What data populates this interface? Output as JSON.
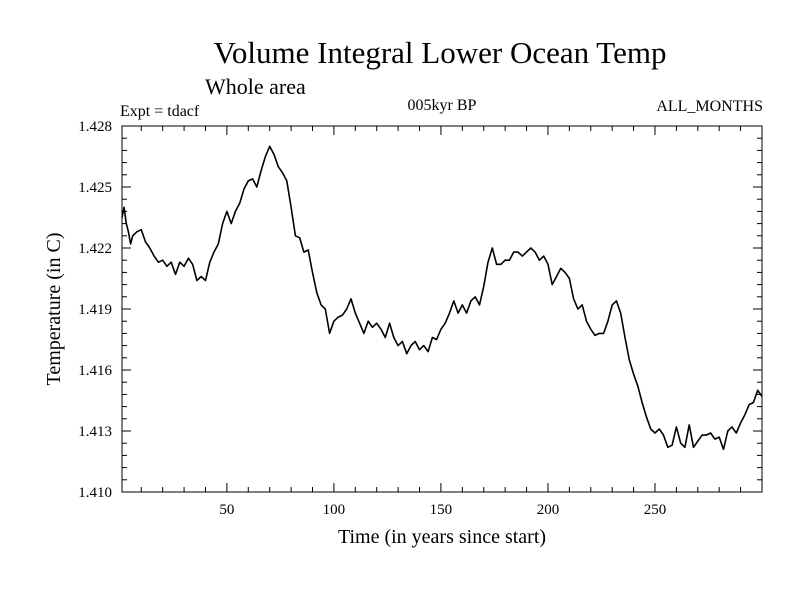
{
  "chart_data": {
    "type": "line",
    "title": "Volume Integral Lower Ocean Temp",
    "subtitle": "Whole area",
    "annotations": {
      "left": "Expt = tdacf",
      "center": "005kyr BP",
      "right": "ALL_MONTHS"
    },
    "xlabel": "Time (in years since start)",
    "ylabel": "Temperature (in C)",
    "xlim": [
      1,
      300
    ],
    "ylim": [
      1.41,
      1.428
    ],
    "x_major_ticks": [
      50,
      100,
      150,
      200,
      250
    ],
    "x_tick_labels": [
      "50",
      "100",
      "150",
      "200",
      "250"
    ],
    "x_minor_step": 10,
    "y_major_ticks": [
      1.41,
      1.413,
      1.416,
      1.419,
      1.422,
      1.425,
      1.428
    ],
    "y_tick_labels": [
      "1.410",
      "1.413",
      "1.416",
      "1.419",
      "1.422",
      "1.425",
      "1.428"
    ],
    "y_minor_step": 0.0006,
    "grid": false,
    "series": [
      {
        "name": "Volume Integral Lower Ocean Temp",
        "color": "#000000",
        "x": [
          1,
          2,
          3,
          4,
          5,
          6,
          8,
          10,
          12,
          14,
          16,
          18,
          20,
          22,
          24,
          26,
          28,
          30,
          32,
          34,
          36,
          38,
          40,
          42,
          44,
          46,
          48,
          50,
          52,
          54,
          56,
          58,
          60,
          62,
          64,
          66,
          68,
          70,
          72,
          74,
          76,
          78,
          80,
          82,
          84,
          86,
          88,
          90,
          92,
          94,
          96,
          98,
          100,
          102,
          104,
          106,
          108,
          110,
          112,
          114,
          116,
          118,
          120,
          122,
          124,
          126,
          128,
          130,
          132,
          134,
          136,
          138,
          140,
          142,
          144,
          146,
          148,
          150,
          152,
          154,
          156,
          158,
          160,
          162,
          164,
          166,
          168,
          170,
          172,
          174,
          176,
          178,
          180,
          182,
          184,
          186,
          188,
          190,
          192,
          194,
          196,
          198,
          200,
          202,
          204,
          206,
          208,
          210,
          212,
          214,
          216,
          218,
          220,
          222,
          224,
          226,
          228,
          230,
          232,
          234,
          236,
          238,
          240,
          242,
          244,
          246,
          248,
          250,
          252,
          254,
          256,
          258,
          260,
          262,
          264,
          266,
          268,
          270,
          272,
          274,
          276,
          278,
          280,
          282,
          284,
          286,
          288,
          290,
          292,
          294,
          296,
          298,
          300
        ],
        "y": [
          1.4235,
          1.424,
          1.4232,
          1.4228,
          1.4222,
          1.4226,
          1.4228,
          1.4229,
          1.4223,
          1.422,
          1.4216,
          1.4213,
          1.4214,
          1.4211,
          1.4213,
          1.4207,
          1.4213,
          1.4211,
          1.4215,
          1.4212,
          1.4204,
          1.4206,
          1.4204,
          1.4213,
          1.4218,
          1.4222,
          1.4232,
          1.4238,
          1.4232,
          1.4238,
          1.4242,
          1.4249,
          1.4253,
          1.4254,
          1.425,
          1.4258,
          1.4265,
          1.427,
          1.4266,
          1.426,
          1.4257,
          1.4253,
          1.424,
          1.4226,
          1.4225,
          1.4218,
          1.4219,
          1.4208,
          1.4198,
          1.4192,
          1.419,
          1.4178,
          1.4184,
          1.4186,
          1.4187,
          1.419,
          1.4195,
          1.4188,
          1.4183,
          1.4178,
          1.4184,
          1.4181,
          1.4183,
          1.418,
          1.4176,
          1.4183,
          1.4176,
          1.4172,
          1.4174,
          1.4168,
          1.4172,
          1.4174,
          1.417,
          1.4172,
          1.4169,
          1.4176,
          1.4175,
          1.418,
          1.4183,
          1.4188,
          1.4194,
          1.4188,
          1.4192,
          1.4188,
          1.4194,
          1.4196,
          1.4192,
          1.4201,
          1.4213,
          1.422,
          1.4212,
          1.4212,
          1.4214,
          1.4214,
          1.4218,
          1.4218,
          1.4216,
          1.4218,
          1.422,
          1.4218,
          1.4214,
          1.4216,
          1.4212,
          1.4202,
          1.4206,
          1.421,
          1.4208,
          1.4205,
          1.4195,
          1.419,
          1.4192,
          1.4184,
          1.418,
          1.4177,
          1.4178,
          1.4178,
          1.4184,
          1.4192,
          1.4194,
          1.4188,
          1.4176,
          1.4165,
          1.4158,
          1.4152,
          1.4144,
          1.4137,
          1.4131,
          1.4129,
          1.4131,
          1.4128,
          1.4122,
          1.4123,
          1.4132,
          1.4124,
          1.4122,
          1.4133,
          1.4122,
          1.4125,
          1.4128,
          1.4128,
          1.4129,
          1.4126,
          1.4127,
          1.4121,
          1.413,
          1.4132,
          1.4129,
          1.4134,
          1.4138,
          1.4143,
          1.4144,
          1.415,
          1.4147
        ]
      }
    ]
  }
}
